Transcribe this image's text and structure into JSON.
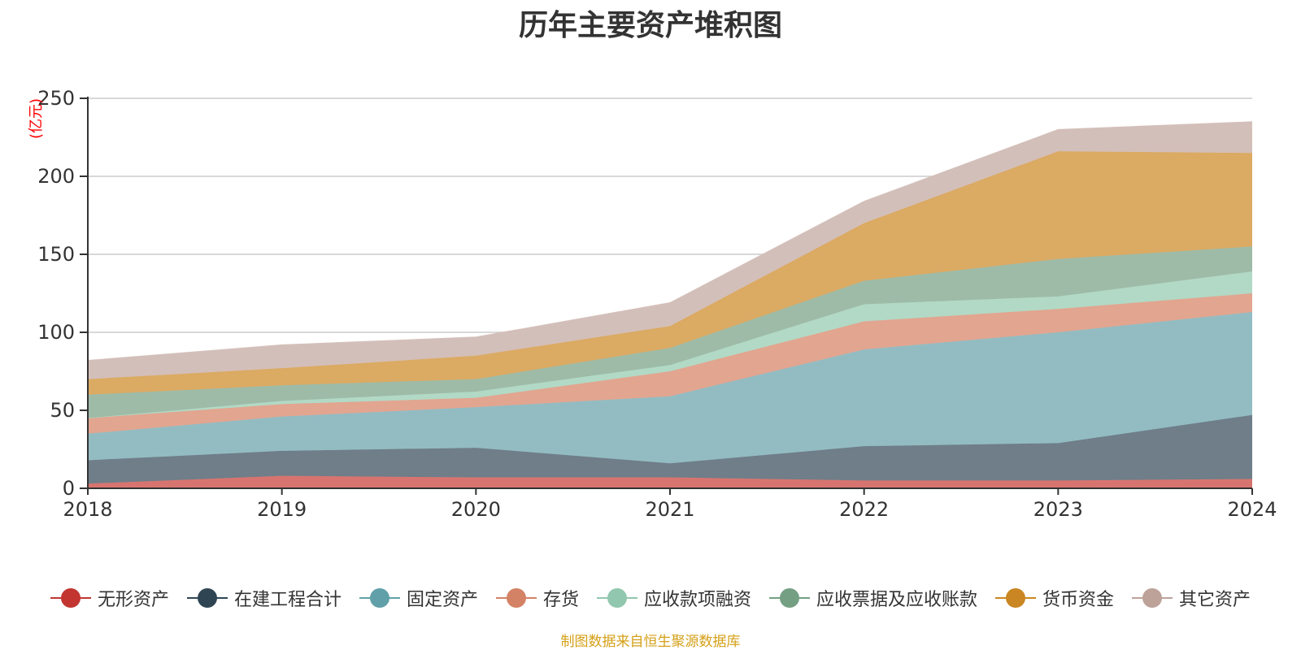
{
  "chart_data": {
    "type": "area",
    "stacked": true,
    "title": "历年主要资产堆积图",
    "y_unit": "(亿元)",
    "x": [
      "2018",
      "2019",
      "2020",
      "2021",
      "2022",
      "2023",
      "2024"
    ],
    "ylim": [
      0,
      250
    ],
    "y_ticks": [
      "0",
      "50",
      "100",
      "150",
      "200",
      "250"
    ],
    "grid": true,
    "legend_position": "bottom",
    "series": [
      {
        "name": "无形资产",
        "color": "#c23531",
        "area_color": "#d77470",
        "values": [
          3,
          8,
          7,
          7,
          5,
          5,
          6
        ]
      },
      {
        "name": "在建工程合计",
        "color": "#2f4554",
        "area_color": "#6f7e89",
        "values": [
          15,
          16,
          19,
          9,
          22,
          24,
          41
        ]
      },
      {
        "name": "固定资产",
        "color": "#61a0a8",
        "area_color": "#93bcc2",
        "values": [
          17,
          22,
          26,
          43,
          62,
          71,
          66
        ]
      },
      {
        "name": "存货",
        "color": "#d48265",
        "area_color": "#e2a590",
        "values": [
          10,
          8,
          6,
          16,
          18,
          15,
          12
        ]
      },
      {
        "name": "应收款项融资",
        "color": "#91c7ae",
        "area_color": "#b1d9c5",
        "values": [
          0,
          2,
          4,
          4,
          11,
          8,
          14
        ]
      },
      {
        "name": "应收票据及应收账款",
        "color": "#749f83",
        "area_color": "#9ebba7",
        "values": [
          15,
          10,
          8,
          11,
          15,
          24,
          16
        ]
      },
      {
        "name": "货币资金",
        "color": "#ca8622",
        "area_color": "#dbaa63",
        "values": [
          10,
          11,
          15,
          14,
          37,
          69,
          60
        ]
      },
      {
        "name": "其它资产",
        "color": "#bda29a",
        "area_color": "#d3bfb9",
        "values": [
          12,
          15,
          12,
          15,
          14,
          14,
          20
        ]
      }
    ]
  },
  "source_note": "制图数据来自恒生聚源数据库"
}
